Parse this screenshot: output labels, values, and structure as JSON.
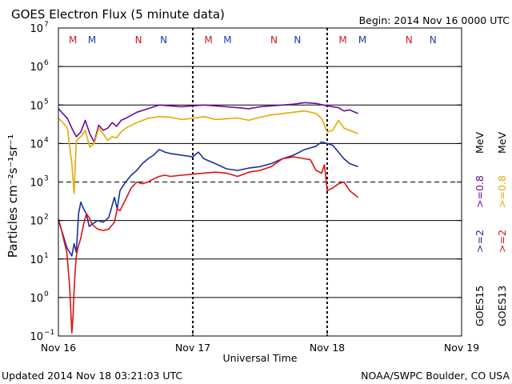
{
  "chart_data": {
    "type": "line",
    "title": "GOES Electron Flux (5 minute data)",
    "begin_label": "Begin: 2014 Nov 16 0000 UTC",
    "xlabel": "Universal Time",
    "ylabel": "Particles cm⁻²s⁻¹sr⁻¹",
    "yscale": "log",
    "ylim": [
      0.1,
      10000000
    ],
    "xlim": [
      0,
      72
    ],
    "x_unit": "hours since 2014 Nov 16 0000 UTC",
    "x_ticks": [
      {
        "x": 0,
        "label": "Nov 16"
      },
      {
        "x": 24,
        "label": "Nov 17"
      },
      {
        "x": 48,
        "label": "Nov 18"
      },
      {
        "x": 72,
        "label": "Nov 19"
      }
    ],
    "y_ticks": [
      {
        "value": 0.1,
        "base": "10",
        "exp": "−1"
      },
      {
        "value": 1,
        "base": "10",
        "exp": "0"
      },
      {
        "value": 10,
        "base": "10",
        "exp": "1"
      },
      {
        "value": 100,
        "base": "10",
        "exp": "2"
      },
      {
        "value": 1000,
        "base": "10",
        "exp": "3"
      },
      {
        "value": 10000,
        "base": "10",
        "exp": "4"
      },
      {
        "value": 100000,
        "base": "10",
        "exp": "5"
      },
      {
        "value": 1000000,
        "base": "10",
        "exp": "6"
      },
      {
        "value": 10000000,
        "base": "10",
        "exp": "7"
      }
    ],
    "threshold": 1000,
    "day_markers": [
      24,
      48
    ],
    "mn_markers": [
      {
        "x": 2.6,
        "label": "M",
        "color": "#d01818"
      },
      {
        "x": 6.0,
        "label": "M",
        "color": "#1e3aa8"
      },
      {
        "x": 14.3,
        "label": "N",
        "color": "#d01818"
      },
      {
        "x": 18.8,
        "label": "N",
        "color": "#1e3aa8"
      },
      {
        "x": 26.8,
        "label": "M",
        "color": "#d01818"
      },
      {
        "x": 30.2,
        "label": "M",
        "color": "#1e3aa8"
      },
      {
        "x": 38.5,
        "label": "N",
        "color": "#d01818"
      },
      {
        "x": 42.7,
        "label": "N",
        "color": "#1e3aa8"
      },
      {
        "x": 50.8,
        "label": "M",
        "color": "#d01818"
      },
      {
        "x": 54.3,
        "label": "M",
        "color": "#1e3aa8"
      },
      {
        "x": 62.6,
        "label": "N",
        "color": "#d01818"
      },
      {
        "x": 66.9,
        "label": "N",
        "color": "#1e3aa8"
      }
    ],
    "series": [
      {
        "name": "GOES15 >=0.8 MeV",
        "color": "#6a0a9e",
        "x": [
          0,
          0.8,
          1.6,
          2.4,
          3.2,
          4.0,
          4.8,
          5.6,
          6.4,
          7.2,
          8.0,
          8.8,
          9.6,
          10.4,
          11.2,
          12,
          14,
          16,
          18,
          20,
          22,
          24,
          26,
          28,
          30,
          32,
          34,
          36,
          38,
          40,
          42,
          44,
          46,
          48,
          49,
          50,
          51,
          52,
          53.5
        ],
        "values": [
          80000,
          60000,
          45000,
          25000,
          15000,
          20000,
          40000,
          18000,
          11000,
          30000,
          22000,
          25000,
          35000,
          28000,
          40000,
          45000,
          65000,
          80000,
          100000,
          95000,
          90000,
          95000,
          100000,
          95000,
          90000,
          85000,
          80000,
          90000,
          95000,
          100000,
          105000,
          115000,
          110000,
          95000,
          90000,
          85000,
          70000,
          75000,
          60000
        ]
      },
      {
        "name": "GOES13 >=0.8 MeV",
        "color": "#e8a800",
        "x": [
          0,
          0.8,
          1.6,
          2.4,
          2.8,
          3.2,
          4.0,
          4.8,
          5.6,
          6.4,
          7.2,
          8.0,
          8.8,
          9.6,
          10.4,
          11.2,
          12,
          14,
          16,
          18,
          20,
          22,
          24,
          26,
          28,
          30,
          32,
          34,
          36,
          38,
          40,
          42,
          44,
          46,
          47,
          48,
          49,
          50,
          51,
          52,
          53.5
        ],
        "values": [
          45000,
          35000,
          25000,
          3000,
          500,
          12000,
          15000,
          22000,
          8000,
          10000,
          25000,
          18000,
          12000,
          15000,
          14000,
          20000,
          25000,
          35000,
          45000,
          50000,
          48000,
          42000,
          45000,
          50000,
          42000,
          44000,
          46000,
          40000,
          48000,
          55000,
          60000,
          65000,
          70000,
          60000,
          45000,
          20000,
          22000,
          40000,
          25000,
          22000,
          18000
        ]
      },
      {
        "name": "GOES15 >=2 MeV",
        "color": "#1a2ea6",
        "x": [
          0,
          0.5,
          1.0,
          1.5,
          2.0,
          2.4,
          2.8,
          3.2,
          3.6,
          4.0,
          4.5,
          5.0,
          5.5,
          6.0,
          7.0,
          8.0,
          9.0,
          10.0,
          10.5,
          11.0,
          12,
          13,
          14,
          15,
          16,
          17,
          18,
          19,
          20,
          22,
          24,
          25,
          26,
          28,
          30,
          32,
          34,
          36,
          38,
          40,
          42,
          44,
          46,
          47,
          48,
          49,
          50,
          51,
          52,
          53.5
        ],
        "values": [
          100,
          60,
          35,
          20,
          15,
          12,
          25,
          15,
          150,
          300,
          200,
          150,
          70,
          80,
          100,
          90,
          120,
          400,
          200,
          600,
          1000,
          1500,
          2000,
          3000,
          4000,
          5000,
          7000,
          6000,
          5500,
          5000,
          4500,
          6000,
          4000,
          3000,
          2200,
          2000,
          2300,
          2500,
          3000,
          4000,
          5000,
          7000,
          8500,
          11000,
          10000,
          9000,
          6000,
          4000,
          3000,
          2500
        ]
      },
      {
        "name": "GOES13 >=2 MeV",
        "color": "#e01010",
        "x": [
          0,
          0.5,
          1.0,
          1.5,
          2.0,
          2.2,
          2.4,
          2.6,
          2.8,
          3.0,
          3.2,
          3.5,
          4.0,
          4.5,
          5.0,
          5.5,
          6.0,
          7.0,
          8.0,
          9.0,
          10.0,
          10.5,
          11,
          12,
          13,
          14,
          15,
          16,
          17,
          18,
          19,
          20,
          22,
          24,
          26,
          28,
          30,
          32,
          34,
          36,
          38,
          40,
          42,
          44,
          45,
          46,
          47,
          47.5,
          48,
          49,
          50,
          51,
          52,
          53.5
        ],
        "values": [
          110,
          60,
          30,
          15,
          2,
          0.5,
          0.12,
          0.3,
          1.5,
          5,
          12,
          20,
          35,
          80,
          150,
          120,
          80,
          60,
          55,
          60,
          90,
          200,
          180,
          350,
          700,
          1000,
          900,
          1000,
          1200,
          1400,
          1500,
          1400,
          1500,
          1600,
          1700,
          1800,
          1700,
          1400,
          1800,
          2000,
          2500,
          4000,
          4500,
          4000,
          3800,
          2000,
          1700,
          2800,
          600,
          700,
          900,
          1000,
          600,
          400
        ]
      }
    ],
    "legend": {
      "goes15": "GOES15",
      "goes13": "GOES13",
      "ge2": ">=2",
      "ge08": ">=0.8",
      "mev": "MeV"
    },
    "updated": "Updated 2014 Nov 18 03:21:03 UTC",
    "credit": "NOAA/SWPC Boulder, CO USA"
  }
}
